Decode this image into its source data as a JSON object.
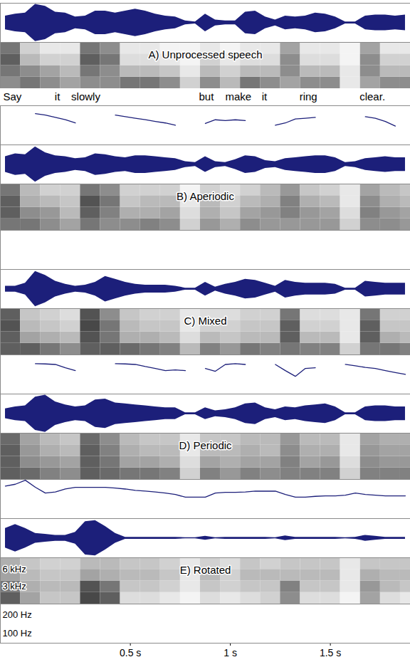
{
  "chart_data": {
    "type": "spectrogram",
    "color": "#1c1f7a",
    "words": [
      "Say",
      "it",
      "slowly",
      "but",
      "make",
      "it",
      "ring",
      "clear."
    ],
    "word_t": [
      -0.09,
      0.135,
      0.277,
      0.88,
      1.04,
      1.17,
      1.39,
      1.71
    ],
    "xlim": [
      -0.15,
      1.9
    ],
    "xticks": [
      {
        "value": 0.5,
        "label": "0.5 s"
      },
      {
        "value": 1,
        "label": "1 s"
      },
      {
        "value": 1.5,
        "label": "1.5 s"
      }
    ],
    "ylim": [
      70,
      300
    ],
    "yticks": [
      {
        "value": 200,
        "label": "200 Hz"
      },
      {
        "value": 100,
        "label": "100 Hz"
      }
    ],
    "log": "y",
    "y2lim": [
      0,
      8
    ],
    "y2ticks": [
      {
        "value": 6,
        "label": "6 kHz"
      },
      {
        "value": 3,
        "label": "3 kHz"
      }
    ],
    "amplitude_lim": [
      -1,
      1
    ],
    "zlim": [
      0,
      1
    ],
    "t": [
      -0.125,
      -0.075,
      -0.025,
      0.025,
      0.075,
      0.125,
      0.175,
      0.225,
      0.275,
      0.325,
      0.375,
      0.425,
      0.475,
      0.525,
      0.575,
      0.625,
      0.675,
      0.725,
      0.775,
      0.825,
      0.875,
      0.925,
      0.975,
      1.025,
      1.075,
      1.125,
      1.175,
      1.225,
      1.275,
      1.325,
      1.375,
      1.425,
      1.475,
      1.525,
      1.575,
      1.625,
      1.675,
      1.725,
      1.775,
      1.825,
      1.875
    ],
    "spec_t": [
      -0.1,
      0,
      0.1,
      0.2,
      0.3,
      0.4,
      0.5,
      0.6,
      0.7,
      0.8,
      0.9,
      1.0,
      1.1,
      1.2,
      1.3,
      1.4,
      1.5,
      1.6,
      1.7,
      1.8,
      1.9
    ],
    "spec_f": [
      1,
      3,
      5,
      7
    ],
    "panels": [
      {
        "title": "A) Unprocessed speech",
        "waveform": [
          0.35,
          0.45,
          0.5,
          0.95,
          0.85,
          0.55,
          0.5,
          0.3,
          0.35,
          0.6,
          0.6,
          0.5,
          0.6,
          0.7,
          0.6,
          0.45,
          0.35,
          0.3,
          0.1,
          0.05,
          0.45,
          0.15,
          0.1,
          0.1,
          0.55,
          0.6,
          0.3,
          0.15,
          0.35,
          0.3,
          0.35,
          0.5,
          0.45,
          0.3,
          0.05,
          0.05,
          0.35,
          0.4,
          0.4,
          0.35,
          0.4
        ],
        "spectrogram": [
          [
            0.5,
            0.6,
            0.7,
            0.6
          ],
          [
            0.6,
            0.5,
            0.3,
            0.2
          ],
          [
            0.5,
            0.4,
            0.2,
            0.1
          ],
          [
            0.4,
            0.3,
            0.2,
            0.1
          ],
          [
            0.5,
            0.6,
            0.7,
            0.6
          ],
          [
            0.5,
            0.5,
            0.6,
            0.5
          ],
          [
            0.6,
            0.3,
            0.15,
            0.1
          ],
          [
            0.6,
            0.3,
            0.15,
            0.1
          ],
          [
            0.5,
            0.25,
            0.1,
            0.05
          ],
          [
            0.2,
            0.1,
            0.05,
            0.05
          ],
          [
            0.5,
            0.3,
            0.2,
            0.1
          ],
          [
            0.3,
            0.2,
            0.1,
            0.05
          ],
          [
            0.6,
            0.3,
            0.15,
            0.1
          ],
          [
            0.5,
            0.3,
            0.15,
            0.1
          ],
          [
            0.4,
            0.5,
            0.5,
            0.4
          ],
          [
            0.5,
            0.3,
            0.15,
            0.1
          ],
          [
            0.5,
            0.3,
            0.15,
            0.1
          ],
          [
            0.1,
            0.1,
            0.05,
            0.05
          ],
          [
            0.4,
            0.5,
            0.5,
            0.4
          ],
          [
            0.5,
            0.3,
            0.2,
            0.1
          ],
          [
            0.5,
            0.3,
            0.2,
            0.1
          ]
        ],
        "f0": [
          null,
          null,
          null,
          224,
          212,
          194,
          178,
          158,
          null,
          null,
          null,
          212,
          200,
          188,
          178,
          167,
          158,
          145,
          null,
          null,
          155,
          178,
          173,
          178,
          173,
          null,
          null,
          145,
          158,
          183,
          188,
          194,
          null,
          null,
          null,
          null,
          200,
          188,
          167,
          141,
          null
        ]
      },
      {
        "title": "B) Aperiodic",
        "waveform": [
          0.4,
          0.55,
          0.5,
          0.9,
          0.6,
          0.45,
          0.4,
          0.3,
          0.35,
          0.55,
          0.5,
          0.4,
          0.35,
          0.45,
          0.45,
          0.4,
          0.35,
          0.3,
          0.15,
          0.1,
          0.4,
          0.15,
          0.1,
          0.25,
          0.45,
          0.4,
          0.2,
          0.15,
          0.3,
          0.35,
          0.4,
          0.45,
          0.45,
          0.35,
          0.1,
          0.15,
          0.3,
          0.35,
          0.4,
          0.35,
          0.35
        ],
        "spectrogram": [
          [
            0.6,
            0.7,
            0.7,
            0.6
          ],
          [
            0.6,
            0.5,
            0.35,
            0.3
          ],
          [
            0.5,
            0.45,
            0.3,
            0.2
          ],
          [
            0.4,
            0.3,
            0.25,
            0.2
          ],
          [
            0.6,
            0.7,
            0.75,
            0.6
          ],
          [
            0.5,
            0.55,
            0.6,
            0.5
          ],
          [
            0.5,
            0.35,
            0.25,
            0.2
          ],
          [
            0.55,
            0.35,
            0.3,
            0.2
          ],
          [
            0.5,
            0.4,
            0.3,
            0.2
          ],
          [
            0.2,
            0.15,
            0.1,
            0.05
          ],
          [
            0.45,
            0.35,
            0.3,
            0.2
          ],
          [
            0.35,
            0.25,
            0.2,
            0.15
          ],
          [
            0.5,
            0.4,
            0.3,
            0.2
          ],
          [
            0.45,
            0.45,
            0.35,
            0.3
          ],
          [
            0.45,
            0.55,
            0.55,
            0.45
          ],
          [
            0.45,
            0.45,
            0.35,
            0.25
          ],
          [
            0.45,
            0.4,
            0.3,
            0.2
          ],
          [
            0.2,
            0.15,
            0.1,
            0.1
          ],
          [
            0.5,
            0.55,
            0.5,
            0.4
          ],
          [
            0.5,
            0.45,
            0.35,
            0.3
          ],
          [
            0.45,
            0.4,
            0.3,
            0.25
          ]
        ]
      },
      {
        "title": "C) Mixed",
        "waveform": [
          0.15,
          0.15,
          0.3,
          0.9,
          0.7,
          0.4,
          0.25,
          0.15,
          0.2,
          0.35,
          0.65,
          0.5,
          0.35,
          0.25,
          0.2,
          0.2,
          0.2,
          0.15,
          0.05,
          0.05,
          0.35,
          0.1,
          0.25,
          0.35,
          0.5,
          0.45,
          0.3,
          0.15,
          0.45,
          0.35,
          0.3,
          0.3,
          0.3,
          0.25,
          0.05,
          0.05,
          0.4,
          0.35,
          0.3,
          0.3,
          0.3
        ],
        "spectrogram": [
          [
            0.7,
            0.7,
            0.75,
            0.7
          ],
          [
            0.7,
            0.4,
            0.3,
            0.25
          ],
          [
            0.6,
            0.35,
            0.25,
            0.2
          ],
          [
            0.5,
            0.3,
            0.2,
            0.15
          ],
          [
            0.7,
            0.75,
            0.8,
            0.75
          ],
          [
            0.7,
            0.6,
            0.6,
            0.5
          ],
          [
            0.65,
            0.35,
            0.3,
            0.25
          ],
          [
            0.6,
            0.35,
            0.25,
            0.2
          ],
          [
            0.55,
            0.3,
            0.25,
            0.2
          ],
          [
            0.3,
            0.15,
            0.1,
            0.1
          ],
          [
            0.55,
            0.3,
            0.2,
            0.15
          ],
          [
            0.45,
            0.25,
            0.2,
            0.15
          ],
          [
            0.6,
            0.3,
            0.25,
            0.2
          ],
          [
            0.55,
            0.3,
            0.25,
            0.2
          ],
          [
            0.6,
            0.7,
            0.7,
            0.6
          ],
          [
            0.55,
            0.3,
            0.2,
            0.15
          ],
          [
            0.55,
            0.3,
            0.2,
            0.15
          ],
          [
            0.2,
            0.1,
            0.1,
            0.1
          ],
          [
            0.6,
            0.7,
            0.7,
            0.6
          ],
          [
            0.6,
            0.35,
            0.25,
            0.2
          ],
          [
            0.55,
            0.3,
            0.25,
            0.2
          ]
        ],
        "f0": [
          null,
          null,
          null,
          216,
          214,
          210,
          186,
          167,
          null,
          null,
          null,
          216,
          214,
          210,
          194,
          181,
          167,
          172,
          167,
          null,
          181,
          163,
          210,
          216,
          210,
          null,
          null,
          210,
          167,
          135,
          181,
          186,
          null,
          null,
          210,
          200,
          188,
          181,
          167,
          155,
          145
        ]
      },
      {
        "title": "D) Periodic",
        "waveform": [
          0.25,
          0.35,
          0.4,
          0.85,
          0.95,
          0.6,
          0.45,
          0.35,
          0.4,
          0.7,
          0.75,
          0.55,
          0.5,
          0.45,
          0.4,
          0.35,
          0.3,
          0.3,
          0.05,
          0.05,
          0.3,
          0.15,
          0.2,
          0.3,
          0.5,
          0.55,
          0.3,
          0.2,
          0.35,
          0.3,
          0.4,
          0.45,
          0.5,
          0.35,
          0.05,
          0.05,
          0.35,
          0.4,
          0.4,
          0.35,
          0.35
        ],
        "spectrogram": [
          [
            0.7,
            0.7,
            0.7,
            0.65
          ],
          [
            0.65,
            0.5,
            0.45,
            0.4
          ],
          [
            0.55,
            0.45,
            0.35,
            0.3
          ],
          [
            0.5,
            0.4,
            0.3,
            0.25
          ],
          [
            0.7,
            0.7,
            0.7,
            0.65
          ],
          [
            0.65,
            0.6,
            0.55,
            0.5
          ],
          [
            0.6,
            0.4,
            0.35,
            0.3
          ],
          [
            0.6,
            0.4,
            0.3,
            0.25
          ],
          [
            0.55,
            0.35,
            0.3,
            0.25
          ],
          [
            0.2,
            0.15,
            0.1,
            0.1
          ],
          [
            0.55,
            0.4,
            0.3,
            0.25
          ],
          [
            0.45,
            0.35,
            0.3,
            0.25
          ],
          [
            0.55,
            0.4,
            0.35,
            0.3
          ],
          [
            0.5,
            0.4,
            0.3,
            0.3
          ],
          [
            0.55,
            0.55,
            0.5,
            0.45
          ],
          [
            0.55,
            0.4,
            0.35,
            0.3
          ],
          [
            0.55,
            0.45,
            0.35,
            0.3
          ],
          [
            0.2,
            0.15,
            0.1,
            0.1
          ],
          [
            0.55,
            0.5,
            0.45,
            0.4
          ],
          [
            0.55,
            0.45,
            0.4,
            0.35
          ],
          [
            0.55,
            0.45,
            0.4,
            0.35
          ]
        ],
        "f0": [
          234,
          251,
          291,
          224,
          181,
          188,
          210,
          224,
          224,
          224,
          224,
          218,
          210,
          200,
          194,
          188,
          181,
          172,
          155,
          155,
          155,
          181,
          186,
          186,
          188,
          194,
          194,
          194,
          172,
          155,
          155,
          160,
          163,
          163,
          167,
          181,
          172,
          167,
          163,
          163,
          163
        ]
      },
      {
        "title": "E) Rotated",
        "waveform": [
          0.5,
          0.7,
          0.5,
          0.25,
          0.2,
          0.15,
          0.15,
          0.3,
          0.85,
          0.9,
          0.6,
          0.25,
          0.05,
          0.05,
          0.05,
          0.05,
          0.05,
          0.05,
          0.03,
          0.03,
          0.1,
          0.03,
          0.05,
          0.05,
          0.05,
          0.05,
          0.05,
          0.03,
          0.12,
          0.05,
          0.05,
          0.05,
          0.05,
          0.05,
          0.03,
          0.05,
          0.15,
          0.1,
          0.05,
          0.05,
          0.05
        ],
        "spectrogram": [
          [
            0.7,
            0.6,
            0.4,
            0.35
          ],
          [
            0.4,
            0.35,
            0.3,
            0.25
          ],
          [
            0.25,
            0.3,
            0.25,
            0.2
          ],
          [
            0.25,
            0.3,
            0.25,
            0.2
          ],
          [
            0.8,
            0.75,
            0.4,
            0.3
          ],
          [
            0.7,
            0.6,
            0.35,
            0.3
          ],
          [
            0.15,
            0.25,
            0.3,
            0.25
          ],
          [
            0.15,
            0.25,
            0.3,
            0.25
          ],
          [
            0.1,
            0.2,
            0.25,
            0.2
          ],
          [
            0.05,
            0.1,
            0.1,
            0.1
          ],
          [
            0.15,
            0.25,
            0.3,
            0.2
          ],
          [
            0.1,
            0.2,
            0.2,
            0.15
          ],
          [
            0.15,
            0.25,
            0.3,
            0.25
          ],
          [
            0.2,
            0.25,
            0.3,
            0.2
          ],
          [
            0.5,
            0.55,
            0.3,
            0.25
          ],
          [
            0.15,
            0.25,
            0.3,
            0.25
          ],
          [
            0.15,
            0.25,
            0.3,
            0.25
          ],
          [
            0.05,
            0.1,
            0.1,
            0.1
          ],
          [
            0.4,
            0.45,
            0.35,
            0.25
          ],
          [
            0.15,
            0.3,
            0.3,
            0.25
          ],
          [
            0.1,
            0.25,
            0.3,
            0.25
          ]
        ]
      }
    ]
  }
}
